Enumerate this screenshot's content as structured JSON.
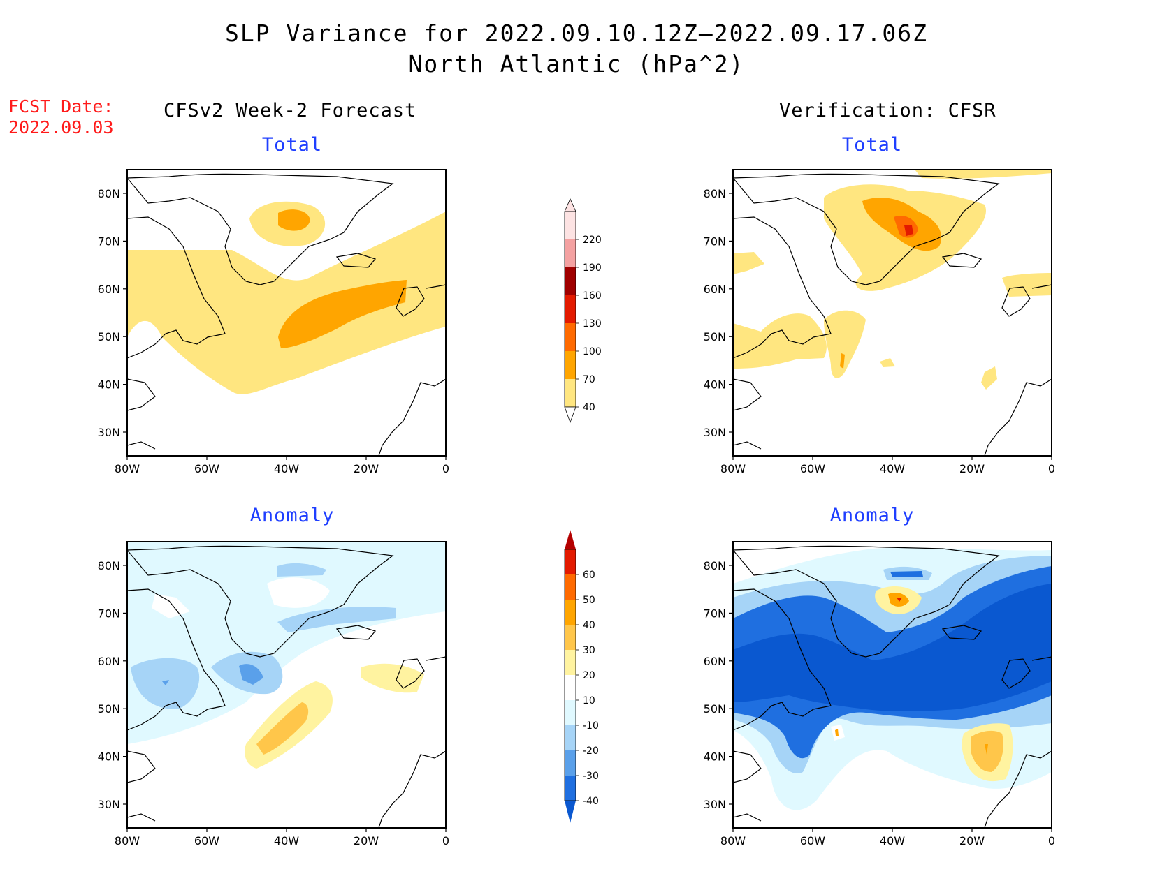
{
  "title": {
    "line1": "SLP Variance for 2022.09.10.12Z–2022.09.17.06Z",
    "line2": "North Atlantic (hPa^2)"
  },
  "fcst_date": {
    "label": "FCST Date:",
    "value": "2022.09.03"
  },
  "columns": {
    "left": "CFSv2 Week-2 Forecast",
    "right": "Verification: CFSR"
  },
  "panels": {
    "total": "Total",
    "anomaly": "Anomaly"
  },
  "axes": {
    "lat_ticks": [
      "80N",
      "70N",
      "60N",
      "50N",
      "40N",
      "30N"
    ],
    "lon_ticks": [
      "80W",
      "60W",
      "40W",
      "20W",
      "0"
    ]
  },
  "colorbars": {
    "total": {
      "levels": [
        "220",
        "190",
        "160",
        "130",
        "100",
        "70",
        "40"
      ],
      "colors": [
        "#fde3e3",
        "#f4a1a1",
        "#a00000",
        "#e31a00",
        "#ff6a00",
        "#ffa500",
        "#ffe680"
      ]
    },
    "anomaly": {
      "levels": [
        "60",
        "50",
        "40",
        "30",
        "20",
        "10",
        "-10",
        "-20",
        "-30",
        "-40"
      ],
      "colors": [
        "#b40000",
        "#e31a00",
        "#ff6a00",
        "#ffa500",
        "#ffc64a",
        "#fff3a0",
        "#ffffff",
        "#e0f9ff",
        "#a6d4f7",
        "#5aa0ea",
        "#1f6fe0",
        "#0a58d0"
      ]
    }
  },
  "colors": {
    "title": "#000000",
    "fcst": "#ff1a1a",
    "subtitle": "#1f3fff"
  }
}
